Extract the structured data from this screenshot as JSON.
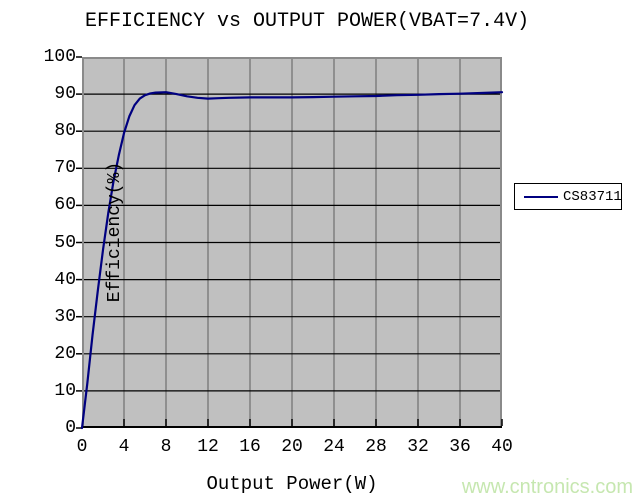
{
  "title": "EFFICIENCY vs OUTPUT POWER(VBAT=7.4V)",
  "watermark": "www.cntronics.com",
  "legend": {
    "items": [
      {
        "label": "CS83711",
        "color": "#000080"
      }
    ]
  },
  "colors": {
    "page_bg": "#ffffff",
    "plot_bg": "#c0c0c0",
    "h_gridline": "#000000",
    "v_gridline": "#7f7f7f",
    "plot_frame": "#8a8a8a",
    "axis": "#000000",
    "text": "#000000",
    "watermark": "#c6e7b0",
    "series_line": "#000080"
  },
  "chart_data": {
    "type": "line",
    "title": "EFFICIENCY vs OUTPUT POWER(VBAT=7.4V)",
    "xlabel": "Output Power(W)",
    "ylabel": "Efficiency(%)",
    "xlim": [
      0,
      40
    ],
    "ylim": [
      0,
      100
    ],
    "xticks": [
      0,
      4,
      8,
      12,
      16,
      20,
      24,
      28,
      32,
      36,
      40
    ],
    "yticks": [
      0,
      10,
      20,
      30,
      40,
      50,
      60,
      70,
      80,
      90,
      100
    ],
    "grid": true,
    "legend_position": "right",
    "series": [
      {
        "name": "CS83711",
        "color": "#000080",
        "points": [
          [
            0,
            0
          ],
          [
            0.5,
            12
          ],
          [
            1,
            25
          ],
          [
            1.5,
            37
          ],
          [
            2,
            48
          ],
          [
            2.5,
            58
          ],
          [
            3,
            66.5
          ],
          [
            3.5,
            73.5
          ],
          [
            4,
            79.5
          ],
          [
            4.5,
            84
          ],
          [
            5,
            87
          ],
          [
            5.5,
            88.8
          ],
          [
            6,
            89.7
          ],
          [
            6.5,
            90.2
          ],
          [
            7,
            90.4
          ],
          [
            8,
            90.5
          ],
          [
            9,
            90.0
          ],
          [
            10,
            89.4
          ],
          [
            11,
            89.0
          ],
          [
            12,
            88.8
          ],
          [
            13,
            88.9
          ],
          [
            14,
            89.0
          ],
          [
            16,
            89.1
          ],
          [
            18,
            89.1
          ],
          [
            20,
            89.1
          ],
          [
            22,
            89.2
          ],
          [
            24,
            89.3
          ],
          [
            26,
            89.4
          ],
          [
            28,
            89.5
          ],
          [
            30,
            89.7
          ],
          [
            32,
            89.8
          ],
          [
            34,
            90.0
          ],
          [
            36,
            90.1
          ],
          [
            38,
            90.3
          ],
          [
            40,
            90.5
          ]
        ]
      }
    ]
  }
}
